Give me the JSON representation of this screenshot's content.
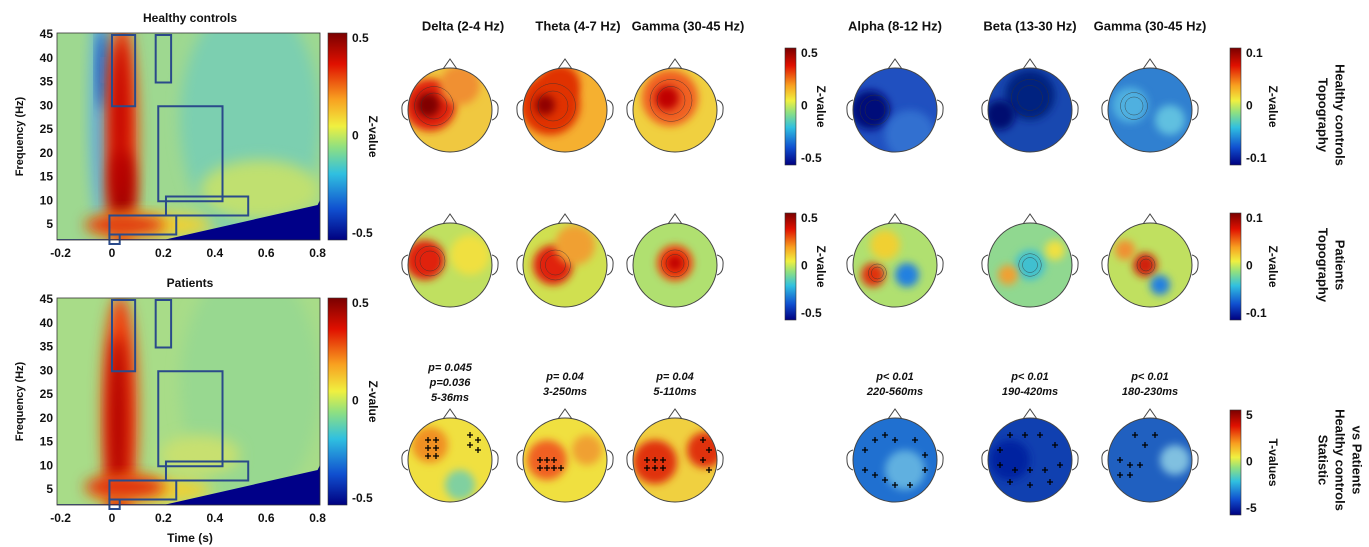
{
  "left_panels": [
    {
      "title": "Healthy controls",
      "y_label": "Frequency (Hz)",
      "y_ticks": [
        "45",
        "40",
        "35",
        "30",
        "25",
        "20",
        "15",
        "10",
        "5"
      ],
      "x_ticks": [
        "-0.2",
        "0",
        "0.2",
        "0.4",
        "0.6",
        "0.8"
      ],
      "colorbar": {
        "label": "Z-value",
        "ticks": [
          "0.5",
          "0",
          "-0.5"
        ]
      }
    },
    {
      "title": "Patients",
      "y_label": "Frequency (Hz)",
      "y_ticks": [
        "45",
        "40",
        "35",
        "30",
        "25",
        "20",
        "15",
        "10",
        "5"
      ],
      "x_ticks": [
        "-0.2",
        "0",
        "0.2",
        "0.4",
        "0.6",
        "0.8"
      ],
      "x_label": "Time (s)",
      "colorbar": {
        "label": "Z-value",
        "ticks": [
          "0.5",
          "0",
          "-0.5"
        ]
      }
    }
  ],
  "topo_groups": [
    {
      "columns": [
        "Delta (2-4 Hz)",
        "Theta (4-7 Hz)",
        "Gamma  (30-45 Hz)"
      ],
      "colorbars": [
        {
          "label": "Z-value",
          "ticks": [
            "0.5",
            "0",
            "-0.5"
          ]
        },
        {
          "label": "Z-value",
          "ticks": [
            "0.5",
            "0",
            "-0.5"
          ]
        },
        null
      ],
      "stats": [
        [
          "p= 0.045",
          "p=0.036",
          "5-36ms"
        ],
        [
          "p= 0.04",
          "3-250ms"
        ],
        [
          "p= 0.04",
          "5-110ms"
        ]
      ]
    },
    {
      "columns": [
        "Alpha (8-12 Hz)",
        "Beta (13-30 Hz)",
        "Gamma (30-45 Hz)"
      ],
      "colorbars": [
        {
          "label": "Z-value",
          "ticks": [
            "0.1",
            "0",
            "-0.1"
          ]
        },
        {
          "label": "Z-value",
          "ticks": [
            "0.1",
            "0",
            "-0.1"
          ]
        },
        {
          "label": "T-values",
          "ticks": [
            "5",
            "0",
            "-5"
          ]
        }
      ],
      "stats": [
        [
          "p< 0.01",
          "220-560ms"
        ],
        [
          "p< 0.01",
          "190-420ms"
        ],
        [
          "p< 0.01",
          "180-230ms"
        ]
      ]
    }
  ],
  "row_labels": [
    [
      "Topography",
      "Healthy controls"
    ],
    [
      "Topography",
      "Patients"
    ],
    [
      "Statistic",
      "Healthy controls",
      "vs Patients"
    ]
  ]
}
